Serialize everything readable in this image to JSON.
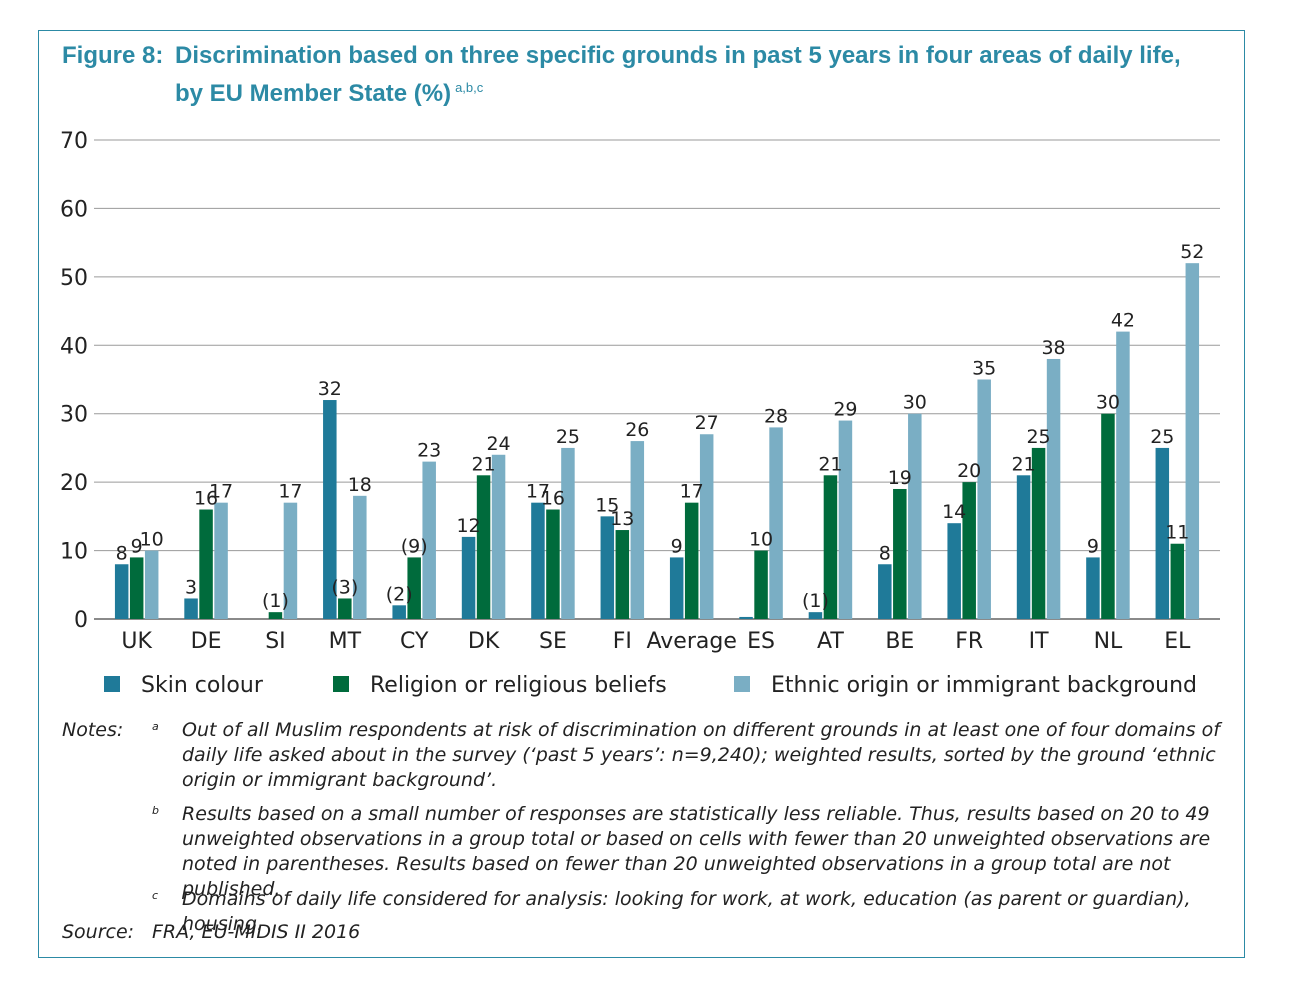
{
  "figure": {
    "label": "Figure 8:",
    "title": "Discrimination based on three specific grounds in past 5 years in four areas of daily life, by EU Member State (%)",
    "superscript": "a,b,c"
  },
  "chart_data": {
    "type": "bar",
    "categories": [
      "UK",
      "DE",
      "SI",
      "MT",
      "CY",
      "DK",
      "SE",
      "FI",
      "Average",
      "ES",
      "AT",
      "BE",
      "FR",
      "IT",
      "NL",
      "EL"
    ],
    "series": [
      {
        "name": "Skin colour",
        "color": "#1f7a99",
        "values": [
          8,
          3,
          0,
          32,
          2,
          12,
          17,
          15,
          9,
          0.3,
          1,
          8,
          14,
          21,
          9,
          25
        ],
        "labels": [
          "8",
          "3",
          "",
          "32",
          "(2)",
          "12",
          "17",
          "15",
          "9",
          "",
          "(1)",
          "8",
          "14",
          "21",
          "9",
          "25"
        ]
      },
      {
        "name": "Religion or religious beliefs",
        "color": "#006b3c",
        "values": [
          9,
          16,
          1,
          3,
          9,
          21,
          16,
          13,
          17,
          10,
          21,
          19,
          20,
          25,
          30,
          11
        ],
        "labels": [
          "9",
          "16",
          "(1)",
          "(3)",
          "(9)",
          "21",
          "16",
          "13",
          "17",
          "10",
          "21",
          "19",
          "20",
          "25",
          "30",
          "11"
        ]
      },
      {
        "name": "Ethnic origin or immigrant background",
        "color": "#7aaec4",
        "values": [
          10,
          17,
          17,
          18,
          23,
          24,
          25,
          26,
          27,
          28,
          29,
          30,
          35,
          38,
          42,
          52
        ],
        "labels": [
          "10",
          "17",
          "17",
          "18",
          "23",
          "24",
          "25",
          "26",
          "27",
          "28",
          "29",
          "30",
          "35",
          "38",
          "42",
          "52"
        ]
      }
    ],
    "ylim": [
      0,
      70
    ],
    "yticks": [
      "0",
      "10",
      "20",
      "30",
      "40",
      "50",
      "60",
      "70"
    ],
    "grid": true,
    "legend": "bottom"
  },
  "notes": {
    "label": "Notes:",
    "items": [
      {
        "mark": "a",
        "text": "Out of all Muslim respondents at risk of discrimination on different grounds in at least one of four domains of daily life asked about in the survey (‘past 5 years’: n=9,240); weighted results, sorted by the ground ‘ethnic origin or immigrant background’."
      },
      {
        "mark": "b",
        "text": "Results based on a small number of responses are statistically less reliable. Thus, results based on 20 to 49 unweighted observations in a group total or based on cells with fewer than 20 unweighted observations are noted in parentheses. Results based on fewer than 20 unweighted observations in a group total are not published."
      },
      {
        "mark": "c",
        "text": "Domains of daily life considered for analysis: looking for work, at work, education (as parent or guardian), housing."
      }
    ]
  },
  "source": {
    "label": "Source:",
    "text": "FRA, EU-MIDIS II 2016"
  }
}
